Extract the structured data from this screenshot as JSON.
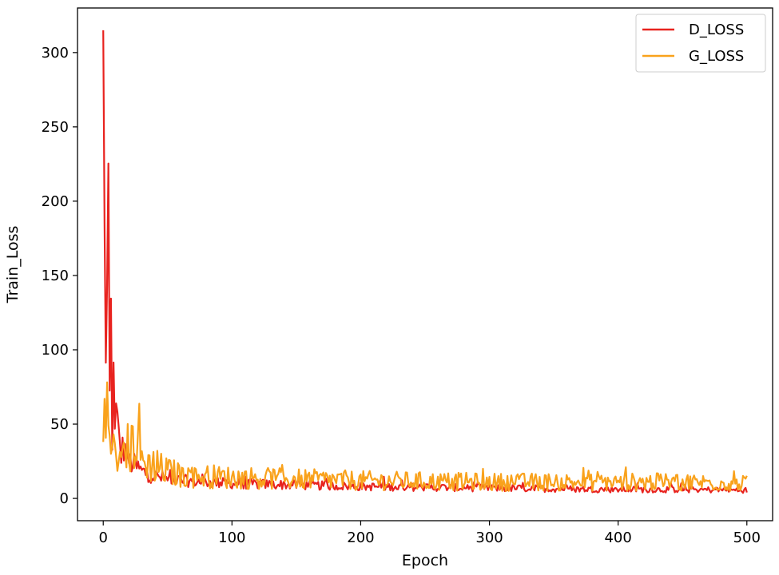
{
  "chart_data": {
    "type": "line",
    "title": "",
    "xlabel": "Epoch",
    "ylabel": "Train_Loss",
    "xlim": [
      -20,
      520
    ],
    "ylim": [
      -15,
      330
    ],
    "grid": false,
    "legend_position": "top-right",
    "x_ticks": [
      0,
      100,
      200,
      300,
      400,
      500
    ],
    "y_ticks": [
      0,
      50,
      100,
      150,
      200,
      250,
      300
    ],
    "series": [
      {
        "name": "D_LOSS",
        "color": "#e8231f",
        "points": [
          [
            0,
            315
          ],
          [
            1,
            180
          ],
          [
            2,
            95
          ],
          [
            3,
            140
          ],
          [
            4,
            205
          ],
          [
            5,
            70
          ],
          [
            6,
            130
          ],
          [
            7,
            35
          ],
          [
            8,
            85
          ],
          [
            9,
            45
          ],
          [
            10,
            60
          ],
          [
            12,
            40
          ],
          [
            14,
            30
          ],
          [
            16,
            35
          ],
          [
            18,
            28
          ],
          [
            20,
            25
          ],
          [
            25,
            22
          ],
          [
            30,
            18
          ],
          [
            40,
            15
          ],
          [
            50,
            13
          ],
          [
            60,
            12
          ],
          [
            80,
            11
          ],
          [
            100,
            10
          ],
          [
            150,
            9
          ],
          [
            200,
            8
          ],
          [
            250,
            7.5
          ],
          [
            300,
            7
          ],
          [
            350,
            6.5
          ],
          [
            400,
            6
          ],
          [
            450,
            6
          ],
          [
            500,
            5.5
          ]
        ]
      },
      {
        "name": "G_LOSS",
        "color": "#f9a21c",
        "points": [
          [
            0,
            38
          ],
          [
            1,
            62
          ],
          [
            2,
            40
          ],
          [
            3,
            75
          ],
          [
            4,
            50
          ],
          [
            5,
            45
          ],
          [
            6,
            28
          ],
          [
            8,
            42
          ],
          [
            10,
            30
          ],
          [
            12,
            35
          ],
          [
            15,
            38
          ],
          [
            20,
            32
          ],
          [
            25,
            40
          ],
          [
            30,
            25
          ],
          [
            40,
            22
          ],
          [
            50,
            18
          ],
          [
            60,
            16
          ],
          [
            80,
            15
          ],
          [
            100,
            14
          ],
          [
            150,
            13
          ],
          [
            200,
            12
          ],
          [
            250,
            11.5
          ],
          [
            300,
            11
          ],
          [
            350,
            11
          ],
          [
            400,
            11
          ],
          [
            450,
            11
          ],
          [
            500,
            10
          ]
        ]
      }
    ]
  }
}
